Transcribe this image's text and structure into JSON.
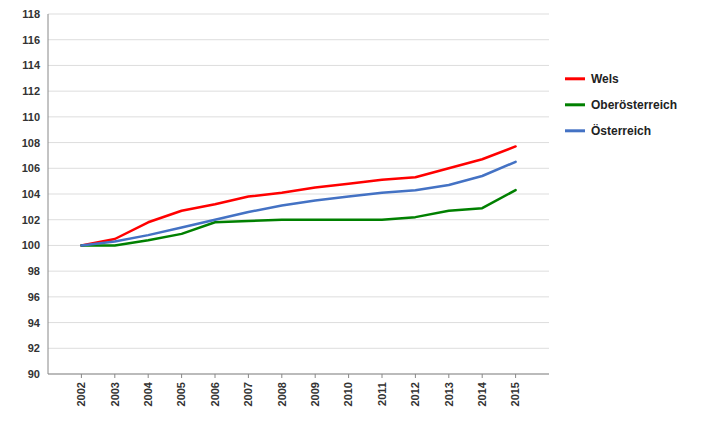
{
  "chart_data": {
    "type": "line",
    "x": [
      2002,
      2003,
      2004,
      2005,
      2006,
      2007,
      2008,
      2009,
      2010,
      2011,
      2012,
      2013,
      2014,
      2015
    ],
    "xlim": [
      2001,
      2016
    ],
    "xticks": [
      2002,
      2003,
      2004,
      2005,
      2006,
      2007,
      2008,
      2009,
      2010,
      2011,
      2012,
      2013,
      2014,
      2015
    ],
    "ylim": [
      90,
      118
    ],
    "yticks": [
      90,
      92,
      94,
      96,
      98,
      100,
      102,
      104,
      106,
      108,
      110,
      112,
      114,
      116,
      118
    ],
    "grid": true,
    "legend": "right",
    "series": [
      {
        "name": "Wels",
        "color": "#FF0000",
        "values": [
          100.0,
          100.5,
          101.8,
          102.7,
          103.2,
          103.8,
          104.1,
          104.5,
          104.8,
          105.1,
          105.3,
          106.0,
          106.7,
          107.7
        ]
      },
      {
        "name": "Oberösterreich",
        "color": "#008000",
        "values": [
          100.0,
          100.0,
          100.4,
          100.9,
          101.8,
          101.9,
          102.0,
          102.0,
          102.0,
          102.0,
          102.2,
          102.7,
          102.9,
          104.3
        ]
      },
      {
        "name": "Österreich",
        "color": "#4472C4",
        "values": [
          100.0,
          100.3,
          100.8,
          101.4,
          102.0,
          102.6,
          103.1,
          103.5,
          103.8,
          104.1,
          104.3,
          104.7,
          105.4,
          106.5
        ]
      }
    ]
  }
}
